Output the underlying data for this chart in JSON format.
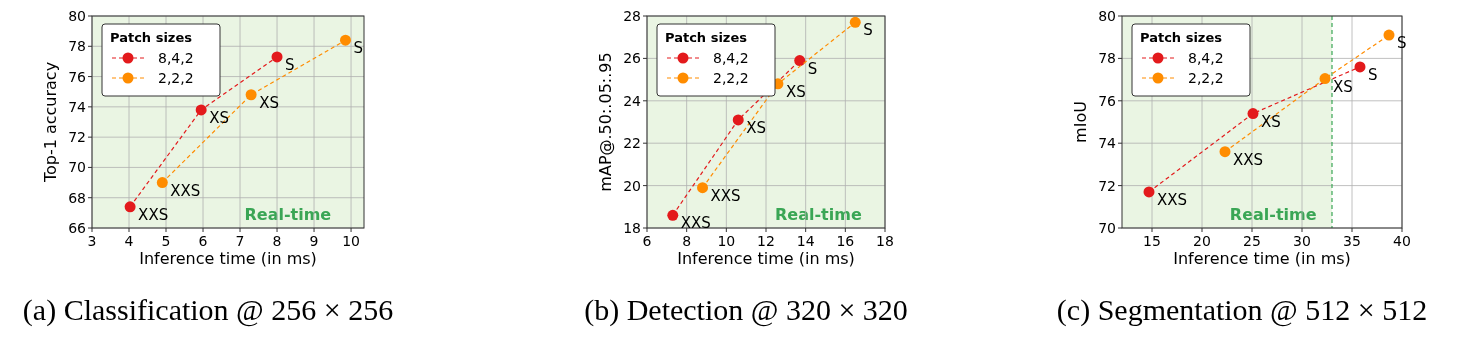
{
  "chart_data": [
    {
      "type": "line",
      "title": "(a) Classification @ 256 × 256",
      "xlabel": "Inference time (in ms)",
      "ylabel": "Top-1 accuracy",
      "legend_title": "Patch sizes",
      "legend": "top left",
      "grid": true,
      "marker": "circle",
      "line_style": "dashed",
      "xlim": [
        3,
        10.35
      ],
      "xticks": [
        3,
        4,
        5,
        6,
        7,
        8,
        9,
        10
      ],
      "ylim": [
        66,
        80
      ],
      "yticks": [
        66,
        68,
        70,
        72,
        74,
        76,
        78,
        80
      ],
      "bands": [
        {
          "axis": "x",
          "from": 3,
          "to": 10.35,
          "label": "Real-time",
          "color": "#eaf5e3"
        }
      ],
      "series": [
        {
          "name": "8,4,2",
          "color": "#e31a1c",
          "x": [
            4.03,
            5.95,
            8.0
          ],
          "values": [
            67.4,
            73.8,
            77.3
          ]
        },
        {
          "name": "2,2,2",
          "color": "#ff8c00",
          "x": [
            4.9,
            7.3,
            9.85
          ],
          "values": [
            69.0,
            74.8,
            78.4
          ]
        }
      ],
      "annotations": [
        {
          "text": "XXS",
          "x": 4.03,
          "y": 67.4
        },
        {
          "text": "XS",
          "x": 5.95,
          "y": 73.8
        },
        {
          "text": "S",
          "x": 8.0,
          "y": 77.3
        },
        {
          "text": "XXS",
          "x": 4.9,
          "y": 69.0
        },
        {
          "text": "XS",
          "x": 7.3,
          "y": 74.8
        },
        {
          "text": "S",
          "x": 9.85,
          "y": 78.4
        }
      ]
    },
    {
      "type": "line",
      "title": "(b) Detection @ 320 × 320",
      "xlabel": "Inference time (in ms)",
      "ylabel": "mAP@.50:.05:.95",
      "legend_title": "Patch sizes",
      "legend": "top left",
      "grid": true,
      "marker": "circle",
      "line_style": "dashed",
      "xlim": [
        6,
        18
      ],
      "xticks": [
        6,
        8,
        10,
        12,
        14,
        16,
        18
      ],
      "ylim": [
        18,
        28
      ],
      "yticks": [
        18,
        20,
        22,
        24,
        26,
        28
      ],
      "bands": [
        {
          "axis": "x",
          "from": 6,
          "to": 18,
          "label": "Real-time",
          "color": "#eaf5e3"
        }
      ],
      "series": [
        {
          "name": "8,4,2",
          "color": "#e31a1c",
          "x": [
            7.3,
            10.6,
            13.7
          ],
          "values": [
            18.6,
            23.1,
            25.9
          ]
        },
        {
          "name": "2,2,2",
          "color": "#ff8c00",
          "x": [
            8.8,
            12.6,
            16.5
          ],
          "values": [
            19.9,
            24.8,
            27.7
          ]
        }
      ],
      "annotations": [
        {
          "text": "XXS",
          "x": 7.3,
          "y": 18.6
        },
        {
          "text": "XS",
          "x": 10.6,
          "y": 23.1
        },
        {
          "text": "S",
          "x": 13.7,
          "y": 25.9
        },
        {
          "text": "XXS",
          "x": 8.8,
          "y": 19.9
        },
        {
          "text": "XS",
          "x": 12.6,
          "y": 24.8
        },
        {
          "text": "S",
          "x": 16.5,
          "y": 27.7
        }
      ]
    },
    {
      "type": "line",
      "title": "(c) Segmentation @ 512 × 512",
      "xlabel": "Inference time (in ms)",
      "ylabel": "mIoU",
      "legend_title": "Patch sizes",
      "legend": "top left",
      "grid": true,
      "marker": "circle",
      "line_style": "dashed",
      "xlim": [
        12,
        40
      ],
      "xticks": [
        15,
        20,
        25,
        30,
        35,
        40
      ],
      "ylim": [
        70,
        80
      ],
      "yticks": [
        70,
        72,
        74,
        76,
        78,
        80
      ],
      "bands": [
        {
          "axis": "x",
          "from": 12,
          "to": 33,
          "label": "Real-time",
          "color": "#eaf5e3"
        }
      ],
      "ref_lines": [
        {
          "axis": "x",
          "value": 33,
          "color": "#3aa655",
          "line_style": "dashed"
        }
      ],
      "series": [
        {
          "name": "8,4,2",
          "color": "#e31a1c",
          "x": [
            14.7,
            25.1,
            35.8
          ],
          "values": [
            71.7,
            75.4,
            77.6
          ]
        },
        {
          "name": "2,2,2",
          "color": "#ff8c00",
          "x": [
            22.3,
            32.3,
            38.7
          ],
          "values": [
            73.6,
            77.05,
            79.1
          ]
        }
      ],
      "annotations": [
        {
          "text": "XXS",
          "x": 14.7,
          "y": 71.7
        },
        {
          "text": "XS",
          "x": 25.1,
          "y": 75.4
        },
        {
          "text": "S",
          "x": 35.8,
          "y": 77.6
        },
        {
          "text": "XXS",
          "x": 22.3,
          "y": 73.6
        },
        {
          "text": "XS",
          "x": 32.3,
          "y": 77.05
        },
        {
          "text": "S",
          "x": 38.7,
          "y": 79.1
        }
      ]
    }
  ]
}
